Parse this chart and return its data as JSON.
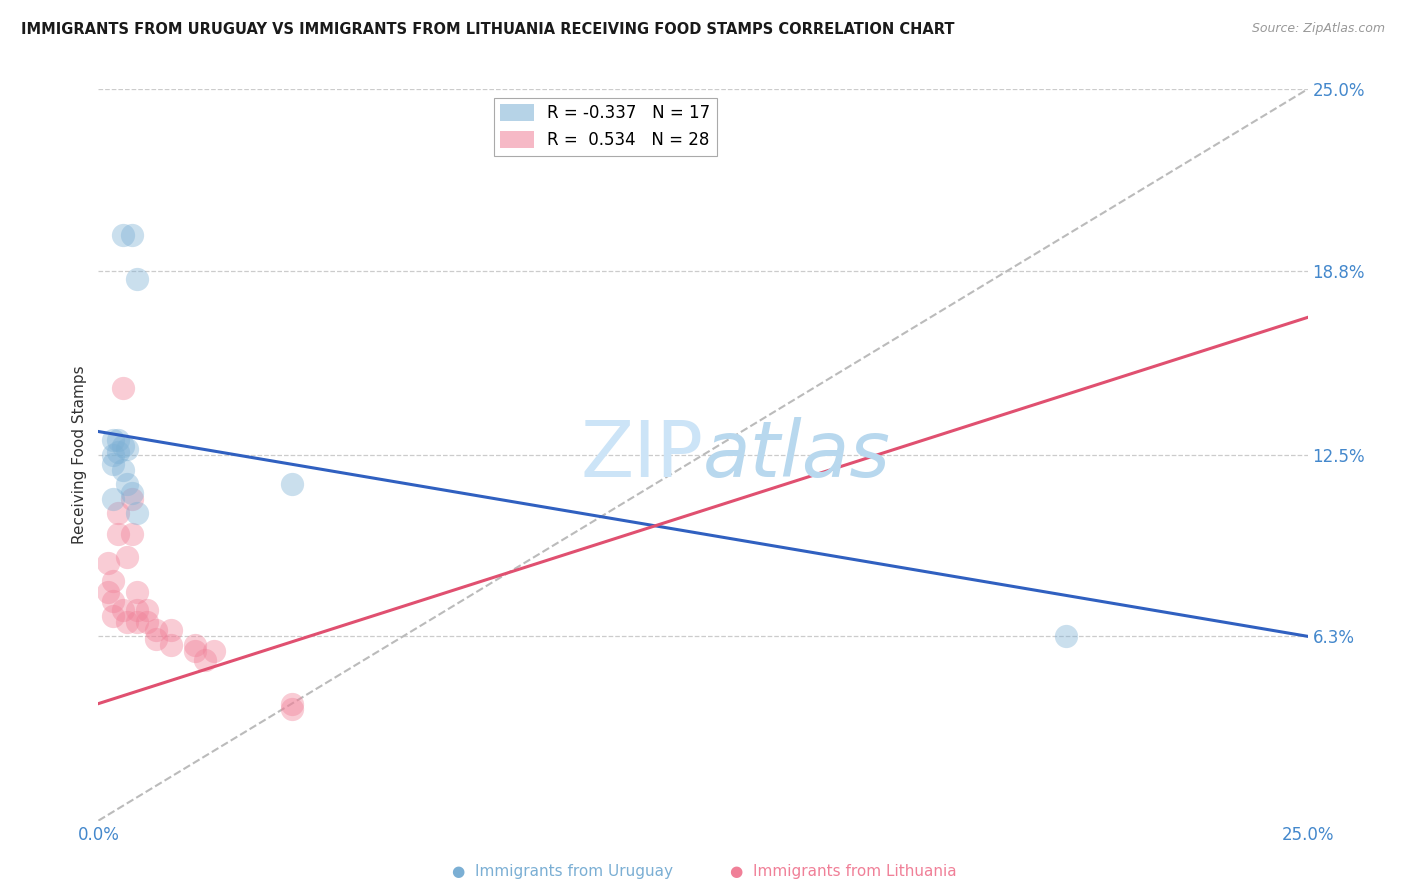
{
  "title": "IMMIGRANTS FROM URUGUAY VS IMMIGRANTS FROM LITHUANIA RECEIVING FOOD STAMPS CORRELATION CHART",
  "source": "Source: ZipAtlas.com",
  "ylabel": "Receiving Food Stamps",
  "xlim": [
    0.0,
    0.25
  ],
  "ylim": [
    0.0,
    0.25
  ],
  "xticks": [
    0.0,
    0.05,
    0.1,
    0.15,
    0.2,
    0.25
  ],
  "xticklabels": [
    "0.0%",
    "",
    "",
    "",
    "",
    "25.0%"
  ],
  "yticks_right": [
    0.063,
    0.125,
    0.188,
    0.25
  ],
  "yticklabels_right": [
    "6.3%",
    "12.5%",
    "18.8%",
    "25.0%"
  ],
  "uruguay_R": "-0.337",
  "uruguay_N": "17",
  "lithuania_R": "0.534",
  "lithuania_N": "28",
  "uruguay_color": "#7bafd4",
  "lithuania_color": "#f08098",
  "trend_uruguay_color": "#3060c0",
  "trend_lithuania_color": "#e05070",
  "watermark_zip": "ZIP",
  "watermark_atlas": "atlas",
  "watermark_color": "#cce4f7",
  "uruguay_points_x": [
    0.003,
    0.005,
    0.007,
    0.008,
    0.004,
    0.005,
    0.006,
    0.004,
    0.003,
    0.003,
    0.005,
    0.006,
    0.007,
    0.04,
    0.2,
    0.008,
    0.003
  ],
  "uruguay_points_y": [
    0.13,
    0.2,
    0.2,
    0.185,
    0.13,
    0.128,
    0.127,
    0.126,
    0.125,
    0.122,
    0.12,
    0.115,
    0.112,
    0.115,
    0.063,
    0.105,
    0.11
  ],
  "lithuania_points_x": [
    0.002,
    0.002,
    0.003,
    0.003,
    0.003,
    0.004,
    0.004,
    0.005,
    0.005,
    0.006,
    0.006,
    0.007,
    0.007,
    0.008,
    0.008,
    0.008,
    0.01,
    0.01,
    0.012,
    0.012,
    0.015,
    0.015,
    0.02,
    0.02,
    0.022,
    0.024,
    0.04,
    0.04
  ],
  "lithuania_points_y": [
    0.088,
    0.078,
    0.082,
    0.075,
    0.07,
    0.105,
    0.098,
    0.148,
    0.072,
    0.09,
    0.068,
    0.11,
    0.098,
    0.078,
    0.072,
    0.068,
    0.072,
    0.068,
    0.065,
    0.062,
    0.065,
    0.06,
    0.06,
    0.058,
    0.055,
    0.058,
    0.04,
    0.038
  ],
  "trend_ury_x0": 0.0,
  "trend_ury_y0": 0.133,
  "trend_ury_x1": 0.25,
  "trend_ury_y1": 0.063,
  "trend_lit_x0": 0.0,
  "trend_lit_y0": 0.04,
  "trend_lit_x1": 0.25,
  "trend_lit_y1": 0.172
}
